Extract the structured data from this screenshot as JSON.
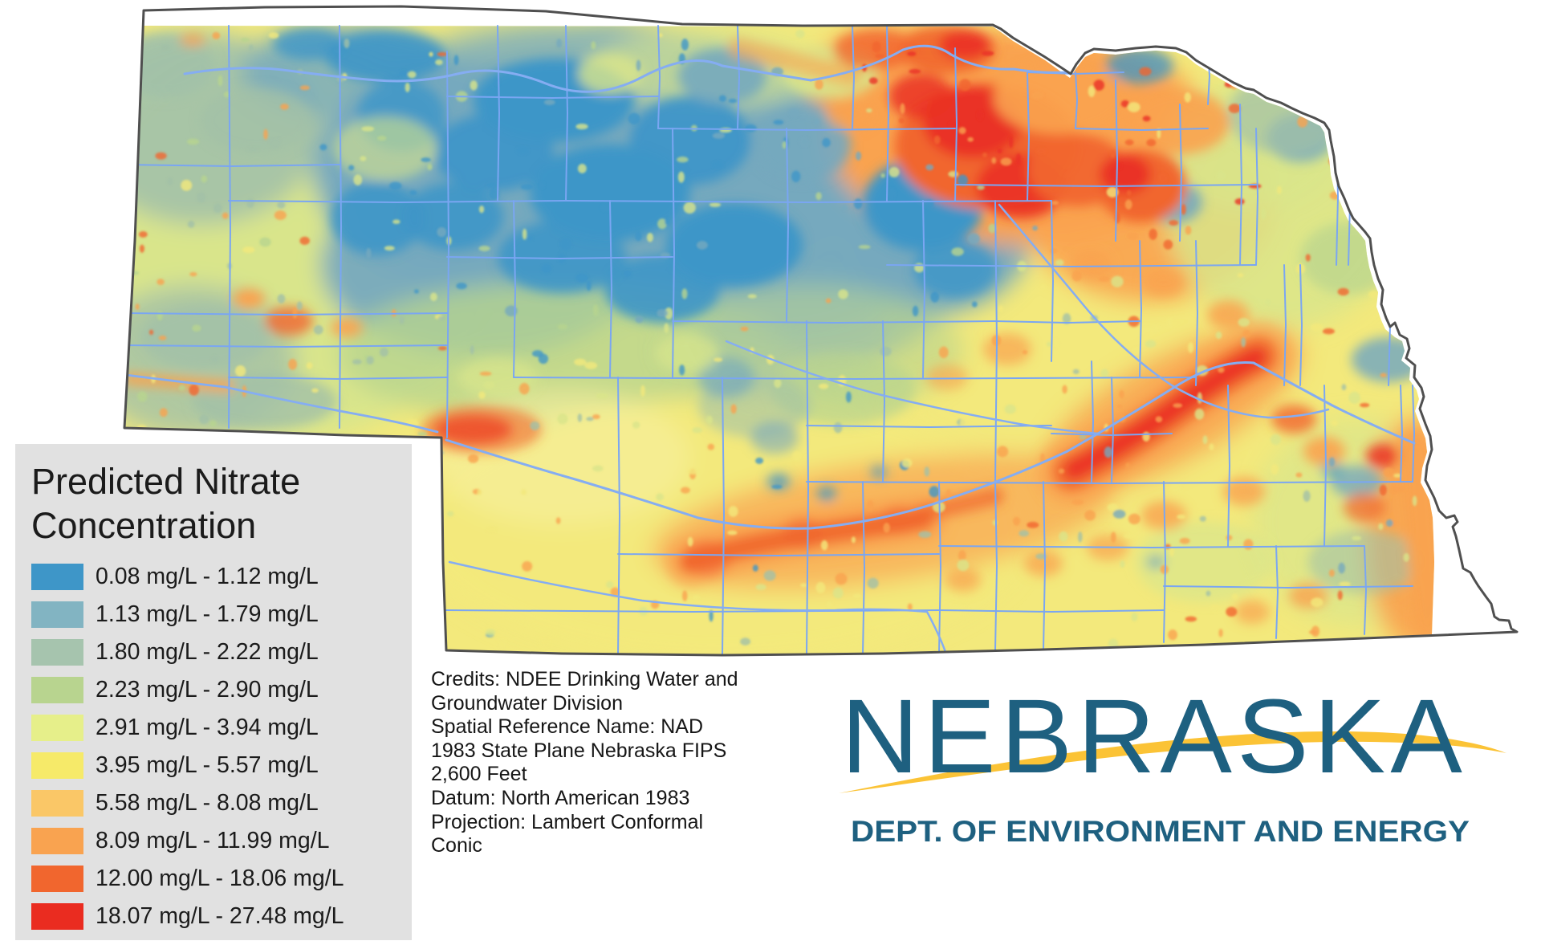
{
  "map": {
    "state": "Nebraska",
    "county_boundary_color": "#7aa6f2",
    "river_color": "#85adf2",
    "state_outline_color": "#4f4f4f"
  },
  "legend": {
    "title_line1": "Predicted Nitrate",
    "title_line2": "Concentration",
    "background": "#e1e1e1",
    "items": [
      {
        "color": "#3e96c8",
        "label": "0.08 mg/L - 1.12 mg/L"
      },
      {
        "color": "#82b4c2",
        "label": "1.13 mg/L - 1.79 mg/L"
      },
      {
        "color": "#a6c4ae",
        "label": "1.80 mg/L - 2.22 mg/L"
      },
      {
        "color": "#b8d48f",
        "label": "2.23 mg/L - 2.90 mg/L"
      },
      {
        "color": "#e6ef8a",
        "label": "2.91 mg/L - 3.94 mg/L"
      },
      {
        "color": "#f6ea69",
        "label": "3.95 mg/L - 5.57 mg/L"
      },
      {
        "color": "#fac767",
        "label": "5.58 mg/L - 8.08 mg/L"
      },
      {
        "color": "#f9a350",
        "label": "8.09 mg/L - 11.99 mg/L"
      },
      {
        "color": "#f1662e",
        "label": "12.00 mg/L - 18.06 mg/L"
      },
      {
        "color": "#ea2c20",
        "label": "18.07 mg/L - 27.48 mg/L"
      }
    ]
  },
  "credits": {
    "lines": [
      "Credits: NDEE Drinking Water and",
      "Groundwater Division",
      "Spatial Reference Name: NAD",
      "1983 State Plane Nebraska FIPS",
      "2,600 Feet",
      "Datum: North American 1983",
      "Projection: Lambert Conformal",
      "Conic"
    ]
  },
  "logo": {
    "wordmark": "NEBRASKA",
    "tagline": "DEPT. OF ENVIRONMENT AND ENERGY",
    "text_color": "#1e6080",
    "swoosh_color": "#fbc336"
  }
}
